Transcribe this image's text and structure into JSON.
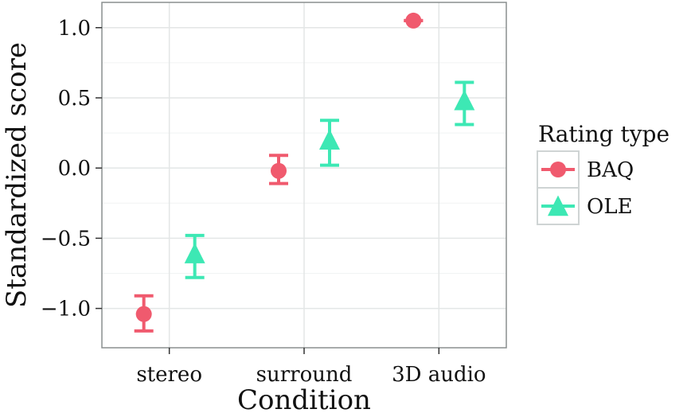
{
  "chart_data": {
    "type": "scatter",
    "xlabel": "Condition",
    "ylabel": "Standardized score",
    "categories": [
      "stereo",
      "surround",
      "3D audio"
    ],
    "ylim": [
      -1.28,
      1.18
    ],
    "yticks": [
      1.0,
      0.5,
      0.0,
      -0.5,
      -1.0
    ],
    "ytick_labels": [
      "1.0",
      "0.5",
      "0.0",
      "−0.5",
      "−1.0"
    ],
    "grid": true,
    "legend": {
      "title": "Rating type",
      "position": "right",
      "entries": [
        "BAQ",
        "OLE"
      ]
    },
    "series": [
      {
        "name": "BAQ",
        "color": "#f05a6e",
        "marker": "circle",
        "values": [
          -1.04,
          -0.02,
          1.05
        ],
        "lower": [
          -1.16,
          -0.11,
          1.05
        ],
        "upper": [
          -0.91,
          0.09,
          1.05
        ]
      },
      {
        "name": "OLE",
        "color": "#3de8b4",
        "marker": "triangle",
        "values": [
          -0.62,
          0.19,
          0.47
        ],
        "lower": [
          -0.78,
          0.02,
          0.31
        ],
        "upper": [
          -0.48,
          0.34,
          0.61
        ]
      }
    ]
  }
}
